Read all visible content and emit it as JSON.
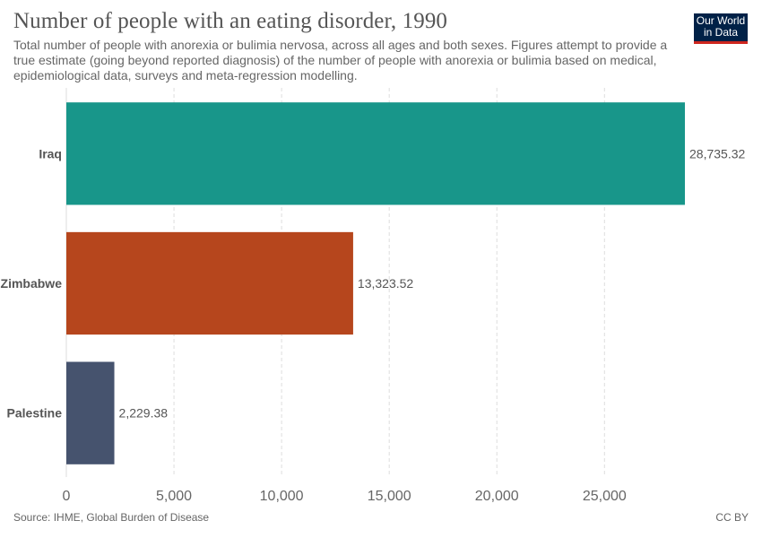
{
  "header": {
    "title": "Number of people with an eating disorder, 1990",
    "subtitle": "Total number of people with anorexia or bulimia nervosa, across all ages and both sexes. Figures attempt to provide a true estimate (going beyond reported diagnosis) of the number of people with anorexia or bulimia based on medical, epidemiological data, surveys and meta-regression modelling.",
    "logo_line1": "Our World",
    "logo_line2": "in Data"
  },
  "footer": {
    "source": "Source: IHME, Global Burden of Disease",
    "license": "CC BY"
  },
  "chart_data": {
    "type": "bar",
    "orientation": "horizontal",
    "categories": [
      "Iraq",
      "Zimbabwe",
      "Palestine"
    ],
    "values": [
      28735.32,
      13323.52,
      2229.38
    ],
    "value_labels": [
      "28,735.32",
      "13,323.52",
      "2,229.38"
    ],
    "colors": [
      "#18968a",
      "#b6461d",
      "#46536e"
    ],
    "xlim": [
      0,
      28735.32
    ],
    "xticks": [
      0,
      5000,
      10000,
      15000,
      20000,
      25000
    ],
    "xtick_labels": [
      "0",
      "5,000",
      "10,000",
      "15,000",
      "20,000",
      "25,000"
    ],
    "grid": "vertical dashed"
  }
}
